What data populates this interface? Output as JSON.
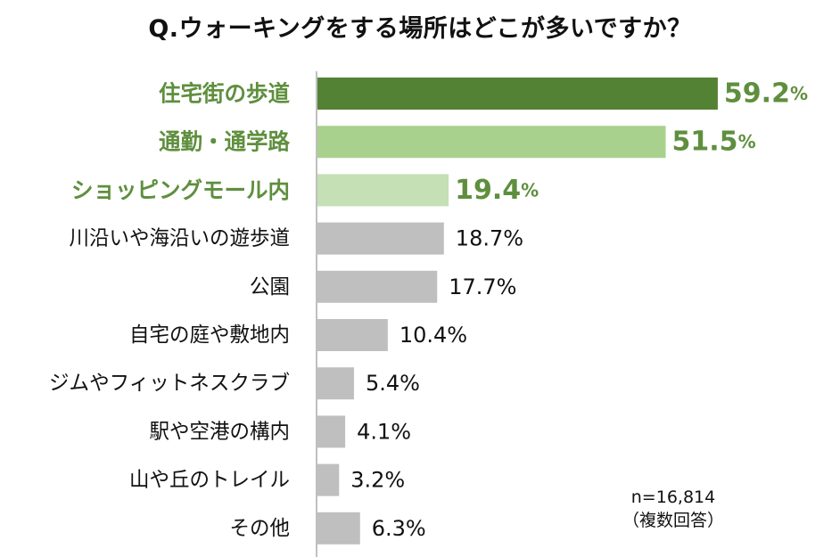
{
  "chart_data": {
    "type": "bar",
    "orientation": "horizontal",
    "title": "Q.ウォーキングをする場所はどこが多いですか？",
    "categories": [
      "住宅街の歩道",
      "通勤・通学路",
      "ショッピングモール内",
      "川沿いや海沿いの遊歩道",
      "公園",
      "自宅の庭や敷地内",
      "ジムやフィットネスクラブ",
      "駅や空港の構内",
      "山や丘のトレイル",
      "その他"
    ],
    "values": [
      59.2,
      51.5,
      19.4,
      18.7,
      17.7,
      10.4,
      5.4,
      4.1,
      3.2,
      6.3
    ],
    "value_labels": [
      "59.2",
      "51.5",
      "19.4",
      "18.7%",
      "17.7%",
      "10.4%",
      "5.4%",
      "4.1%",
      "3.2%",
      "6.3%"
    ],
    "highlight_suffix": "%",
    "highlight_count": 3,
    "unit": "%",
    "xlim": [
      0,
      60
    ],
    "colors": {
      "rank1": "#548235",
      "rank2": "#a9d18e",
      "rank3": "#c5e0b4",
      "other": "#bfbfbf",
      "highlight_text": "#5f8f3e",
      "text": "#111111",
      "axis": "#bfbfbf"
    }
  },
  "note": {
    "sample": "n=16,814",
    "answer_type": "（複数回答）"
  }
}
